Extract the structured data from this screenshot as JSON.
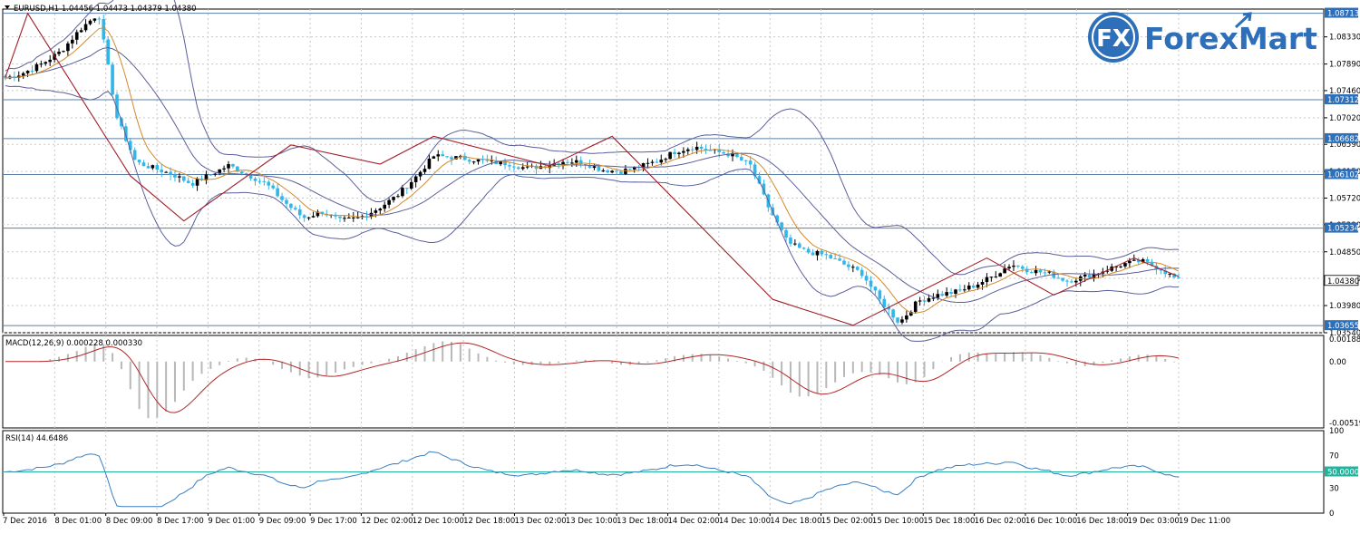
{
  "chart_data": {
    "type": "candlestick",
    "symbol_header": "EURUSD,H1  1.04456 1.04473 1.04379 1.04380",
    "price_axis": {
      "range": [
        1.0354,
        1.0878
      ],
      "ticks": [
        "1.08330",
        "1.07890",
        "1.07460",
        "1.07020",
        "1.06590",
        "1.06150",
        "1.05720",
        "1.05290",
        "1.04850",
        "1.04420",
        "1.03980",
        "1.03540"
      ]
    },
    "horizontal_levels": [
      {
        "value": 1.08713,
        "label": "1.08713"
      },
      {
        "value": 1.07312,
        "label": "1.07312"
      },
      {
        "value": 1.06682,
        "label": "1.06682"
      },
      {
        "value": 1.06102,
        "label": "1.06102"
      },
      {
        "value": 1.05234,
        "label": "1.05234"
      },
      {
        "value": 1.03655,
        "label": "1.03655"
      }
    ],
    "current_price": {
      "value": 1.0438,
      "label": "1.04380"
    },
    "time_axis_labels": [
      "7 Dec 2016",
      "8 Dec 01:00",
      "8 Dec 09:00",
      "8 Dec 17:00",
      "9 Dec 01:00",
      "9 Dec 09:00",
      "9 Dec 17:00",
      "12 Dec 02:00",
      "12 Dec 10:00",
      "12 Dec 18:00",
      "13 Dec 02:00",
      "13 Dec 10:00",
      "13 Dec 18:00",
      "14 Dec 02:00",
      "14 Dec 10:00",
      "14 Dec 18:00",
      "15 Dec 02:00",
      "15 Dec 10:00",
      "15 Dec 18:00",
      "16 Dec 02:00",
      "16 Dec 10:00",
      "16 Dec 18:00",
      "19 Dec 03:00",
      "19 Dec 11:00"
    ],
    "price_path": [
      1.0766,
      1.0775,
      1.079,
      1.081,
      1.0845,
      1.0871,
      1.07,
      1.063,
      1.062,
      1.061,
      1.0595,
      1.061,
      1.0625,
      1.061,
      1.0595,
      1.0565,
      1.054,
      1.055,
      1.0535,
      1.054,
      1.0555,
      1.0575,
      1.0605,
      1.064,
      1.0638,
      1.0635,
      1.063,
      1.0628,
      1.062,
      1.0625,
      1.0632,
      1.063,
      1.0618,
      1.0615,
      1.0622,
      1.0632,
      1.0648,
      1.0655,
      1.0648,
      1.0642,
      1.0625,
      1.0555,
      1.05,
      1.0485,
      1.048,
      1.0465,
      1.045,
      1.0405,
      1.037,
      1.0405,
      1.0415,
      1.042,
      1.043,
      1.0445,
      1.0465,
      1.0455,
      1.045,
      1.0438,
      1.0445,
      1.0455,
      1.0465,
      1.047,
      1.0458,
      1.0438
    ],
    "zigzag": [
      [
        0,
        1.0768
      ],
      [
        5,
        1.0871
      ],
      [
        28,
        1.0608
      ],
      [
        40,
        1.0535
      ],
      [
        64,
        1.0658
      ],
      [
        84,
        1.0627
      ],
      [
        96,
        1.0672
      ],
      [
        122,
        1.0624
      ],
      [
        136,
        1.0672
      ],
      [
        172,
        1.0408
      ],
      [
        190,
        1.0366
      ],
      [
        220,
        1.0475
      ],
      [
        235,
        1.0415
      ],
      [
        253,
        1.0475
      ],
      [
        263,
        1.0445
      ]
    ],
    "macd": {
      "label": "MACD(12,26,9) 0.000228 0.000330",
      "ticks": [
        "0.001882",
        "0.00",
        "-0.005193"
      ],
      "range": [
        -0.0056,
        0.0022
      ]
    },
    "rsi": {
      "label": "RSI(14) 44.6486",
      "ticks": [
        "100",
        "70",
        "50.0000",
        "30",
        "0"
      ],
      "level": 50,
      "range": [
        0,
        100
      ]
    },
    "logo": "ForexMart",
    "logo_mark": "FX"
  }
}
